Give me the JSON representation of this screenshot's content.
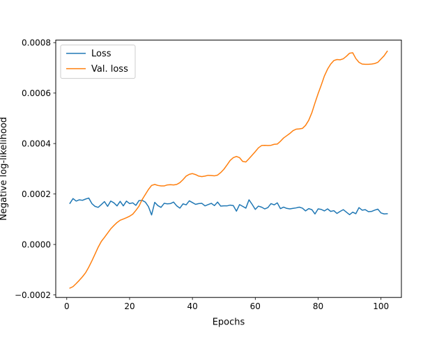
{
  "chart_data": {
    "type": "line",
    "title": "",
    "xlabel": "Epochs",
    "ylabel": "Negative log-likelihood",
    "xlim": [
      -3.5,
      106.5
    ],
    "ylim": [
      -0.00021,
      0.00081
    ],
    "xticks": [
      0,
      20,
      40,
      60,
      80,
      100
    ],
    "xtick_labels": [
      "0",
      "20",
      "40",
      "60",
      "80",
      "100"
    ],
    "yticks": [
      -0.0002,
      0.0,
      0.0002,
      0.0004,
      0.0006,
      0.0008
    ],
    "ytick_labels": [
      "−0.0002",
      "0.0000",
      "0.0002",
      "0.0004",
      "0.0006",
      "0.0008"
    ],
    "grid": false,
    "legend": {
      "position": "upper-left"
    },
    "series": [
      {
        "name": "Loss",
        "color": "#1f77b4",
        "x": [
          1,
          2,
          3,
          4,
          5,
          6,
          7,
          8,
          9,
          10,
          11,
          12,
          13,
          14,
          15,
          16,
          17,
          18,
          19,
          20,
          21,
          22,
          23,
          24,
          25,
          26,
          27,
          28,
          29,
          30,
          31,
          32,
          33,
          34,
          35,
          36,
          37,
          38,
          39,
          40,
          41,
          42,
          43,
          44,
          45,
          46,
          47,
          48,
          49,
          50,
          51,
          52,
          53,
          54,
          55,
          56,
          57,
          58,
          59,
          60,
          61,
          62,
          63,
          64,
          65,
          66,
          67,
          68,
          69,
          70,
          71,
          72,
          73,
          74,
          75,
          76,
          77,
          78,
          79,
          80,
          81,
          82,
          83,
          84,
          85,
          86,
          87,
          88,
          89,
          90,
          91,
          92,
          93,
          94,
          95,
          96,
          97,
          98,
          99,
          100,
          101,
          102
        ],
        "values": [
          0.000163,
          0.000182,
          0.000172,
          0.000177,
          0.000175,
          0.00018,
          0.000184,
          0.000162,
          0.000151,
          0.000147,
          0.000158,
          0.00017,
          0.000151,
          0.000172,
          0.000165,
          0.000153,
          0.000171,
          0.000153,
          0.000172,
          0.000162,
          0.000165,
          0.000155,
          0.000174,
          0.000175,
          0.000168,
          0.00015,
          0.000117,
          0.000167,
          0.000154,
          0.000147,
          0.000163,
          0.000161,
          0.000162,
          0.000168,
          0.000153,
          0.000144,
          0.000161,
          0.000157,
          0.000173,
          0.000166,
          0.000159,
          0.000162,
          0.000163,
          0.000153,
          0.000158,
          0.000163,
          0.000154,
          0.000168,
          0.000152,
          0.000153,
          0.000153,
          0.000156,
          0.000154,
          0.000132,
          0.000158,
          0.000151,
          0.000144,
          0.000177,
          0.000159,
          0.000139,
          0.000152,
          0.000148,
          0.000141,
          0.000146,
          0.000162,
          0.000157,
          0.000165,
          0.000142,
          0.000148,
          0.000143,
          0.000141,
          0.000143,
          0.000145,
          0.000148,
          0.000144,
          0.000133,
          0.000142,
          0.000138,
          0.000121,
          0.000141,
          0.000139,
          0.000133,
          0.000141,
          0.000131,
          0.000134,
          0.000123,
          0.000131,
          0.000138,
          0.000128,
          0.000118,
          0.000128,
          0.000122,
          0.000146,
          0.000136,
          0.000138,
          0.00013,
          0.000131,
          0.000136,
          0.00014,
          0.000125,
          0.000121,
          0.000122
        ]
      },
      {
        "name": "Val. loss",
        "color": "#ff7f0e",
        "x": [
          1,
          2,
          3,
          4,
          5,
          6,
          7,
          8,
          9,
          10,
          11,
          12,
          13,
          14,
          15,
          16,
          17,
          18,
          19,
          20,
          21,
          22,
          23,
          24,
          25,
          26,
          27,
          28,
          29,
          30,
          31,
          32,
          33,
          34,
          35,
          36,
          37,
          38,
          39,
          40,
          41,
          42,
          43,
          44,
          45,
          46,
          47,
          48,
          49,
          50,
          51,
          52,
          53,
          54,
          55,
          56,
          57,
          58,
          59,
          60,
          61,
          62,
          63,
          64,
          65,
          66,
          67,
          68,
          69,
          70,
          71,
          72,
          73,
          74,
          75,
          76,
          77,
          78,
          79,
          80,
          81,
          82,
          83,
          84,
          85,
          86,
          87,
          88,
          89,
          90,
          91,
          92,
          93,
          94,
          95,
          96,
          97,
          98,
          99,
          100,
          101,
          102
        ],
        "values": [
          -0.000173,
          -0.000167,
          -0.000155,
          -0.000142,
          -0.000128,
          -0.000112,
          -9e-05,
          -6.5e-05,
          -3.8e-05,
          -1.1e-05,
          1.2e-05,
          2.8e-05,
          4.5e-05,
          6.2e-05,
          7.5e-05,
          8.7e-05,
          9.6e-05,
          0.000101,
          0.000106,
          0.000112,
          0.00012,
          0.000135,
          0.000152,
          0.000178,
          0.000198,
          0.000218,
          0.000234,
          0.000238,
          0.000234,
          0.000232,
          0.000232,
          0.000236,
          0.000237,
          0.000236,
          0.000238,
          0.000245,
          0.000257,
          0.000271,
          0.000278,
          0.000281,
          0.000277,
          0.000271,
          0.000269,
          0.000271,
          0.000274,
          0.000273,
          0.000272,
          0.000275,
          0.000285,
          0.000298,
          0.000315,
          0.000333,
          0.000344,
          0.000349,
          0.000344,
          0.000329,
          0.000327,
          0.00034,
          0.000354,
          0.000368,
          0.000383,
          0.000392,
          0.000393,
          0.000392,
          0.000393,
          0.000397,
          0.000398,
          0.000409,
          0.000422,
          0.000431,
          0.00044,
          0.000451,
          0.000457,
          0.000458,
          0.00046,
          0.000472,
          0.000492,
          0.000522,
          0.000561,
          0.000598,
          0.000632,
          0.000668,
          0.000695,
          0.000715,
          0.000729,
          0.000733,
          0.000732,
          0.000736,
          0.000746,
          0.000758,
          0.00076,
          0.000737,
          0.000722,
          0.000715,
          0.000714,
          0.000714,
          0.000715,
          0.000717,
          0.000722,
          0.000735,
          0.000748,
          0.000766
        ]
      }
    ]
  }
}
